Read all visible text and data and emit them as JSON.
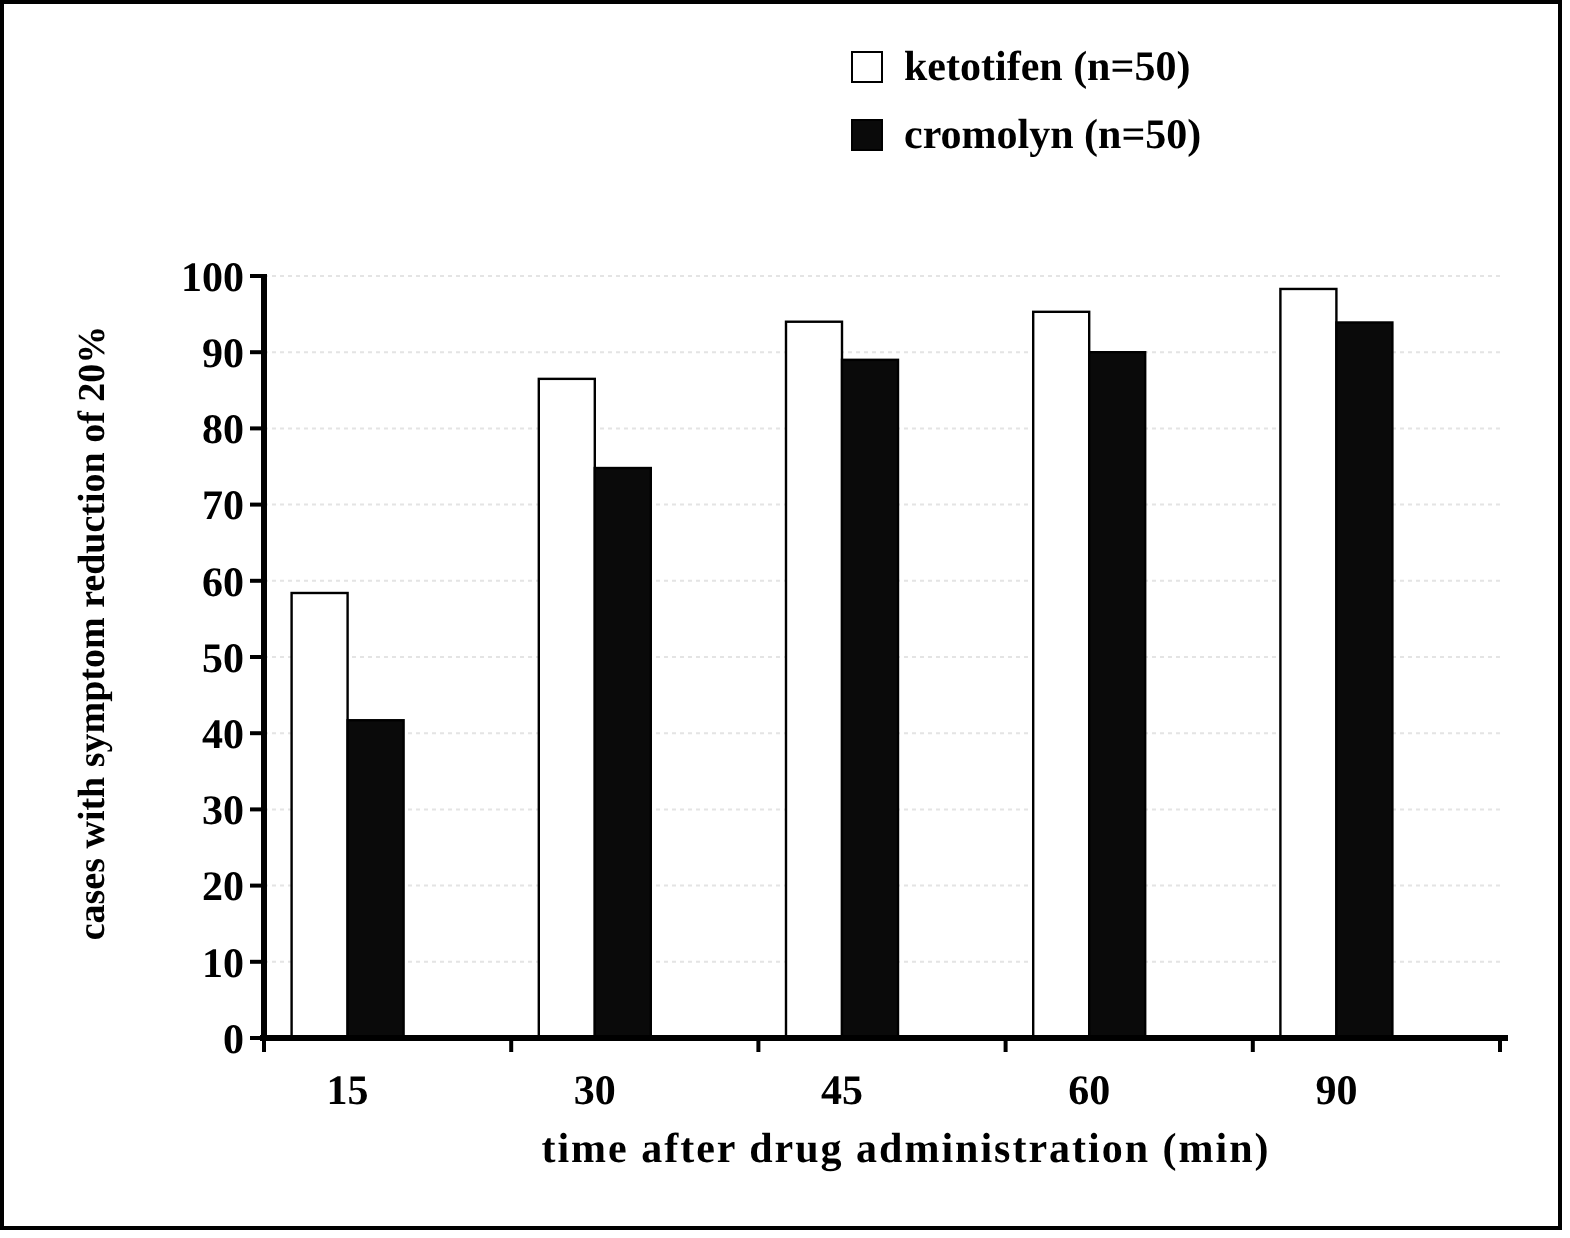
{
  "chart_data": {
    "type": "bar",
    "xlabel": "time after drug administration (min)",
    "ylabel": "cases with symptom reduction of 20%",
    "categories": [
      "15",
      "30",
      "45",
      "60",
      "90"
    ],
    "series": [
      {
        "name": "ketotifen (n=50)",
        "color": "#ffffff",
        "values": [
          58.4,
          86.5,
          94,
          95.3,
          98.3
        ]
      },
      {
        "name": "cromolyn (n=50)",
        "color": "#0a0a0a",
        "values": [
          41.7,
          74.8,
          89,
          90,
          93.9
        ]
      }
    ],
    "ylim": [
      0,
      100
    ],
    "yticks": [
      0,
      10,
      20,
      30,
      40,
      50,
      60,
      70,
      80,
      90,
      100
    ],
    "grid": "y",
    "legend": "top right"
  }
}
